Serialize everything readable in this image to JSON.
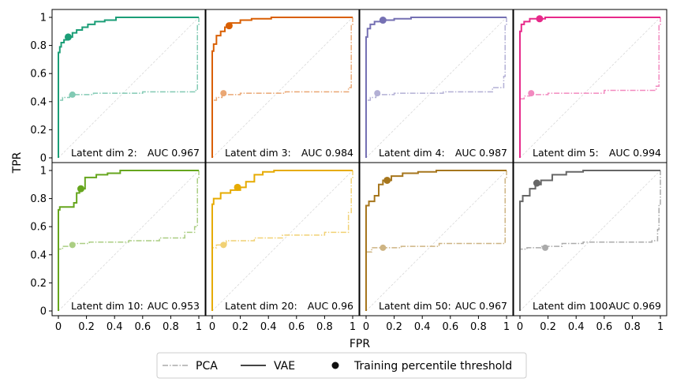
{
  "chart_data": {
    "type": "line",
    "title": "",
    "xlabel": "FPR",
    "ylabel": "TPR",
    "xlim": [
      0,
      1
    ],
    "ylim": [
      0,
      1
    ],
    "x_ticks": [
      "0",
      "0.2",
      "0.4",
      "0.6",
      "0.8",
      "1"
    ],
    "y_ticks": [
      "0",
      "0.2",
      "0.4",
      "0.6",
      "0.8",
      "1"
    ],
    "legend": {
      "placement": "bottom-center",
      "entries": [
        {
          "label": "PCA",
          "style": "dash-dot",
          "color": "#aaaaaa"
        },
        {
          "label": "VAE",
          "style": "solid",
          "color": "#444444"
        },
        {
          "label": "Training percentile threshold",
          "style": "marker",
          "color": "#111111"
        }
      ]
    },
    "panels": [
      {
        "label": "Latent dim 2:",
        "auc_text": "AUC 0.967",
        "color": "#1b9e77",
        "vae": [
          [
            0,
            0
          ],
          [
            0,
            0.75
          ],
          [
            0.01,
            0.75
          ],
          [
            0.01,
            0.79
          ],
          [
            0.02,
            0.79
          ],
          [
            0.02,
            0.82
          ],
          [
            0.04,
            0.82
          ],
          [
            0.04,
            0.84
          ],
          [
            0.07,
            0.84
          ],
          [
            0.07,
            0.86
          ],
          [
            0.1,
            0.86
          ],
          [
            0.1,
            0.89
          ],
          [
            0.13,
            0.89
          ],
          [
            0.13,
            0.91
          ],
          [
            0.17,
            0.91
          ],
          [
            0.17,
            0.93
          ],
          [
            0.21,
            0.93
          ],
          [
            0.21,
            0.95
          ],
          [
            0.26,
            0.95
          ],
          [
            0.26,
            0.97
          ],
          [
            0.33,
            0.97
          ],
          [
            0.33,
            0.98
          ],
          [
            0.41,
            0.98
          ],
          [
            0.41,
            1
          ],
          [
            1,
            1
          ]
        ],
        "vae_threshold": [
          0.07,
          0.86
        ],
        "pca": [
          [
            0,
            0
          ],
          [
            0,
            0.41
          ],
          [
            0.03,
            0.41
          ],
          [
            0.03,
            0.43
          ],
          [
            0.08,
            0.43
          ],
          [
            0.08,
            0.45
          ],
          [
            0.25,
            0.45
          ],
          [
            0.25,
            0.46
          ],
          [
            0.6,
            0.46
          ],
          [
            0.6,
            0.47
          ],
          [
            0.97,
            0.47
          ],
          [
            0.97,
            0.48
          ],
          [
            0.99,
            0.48
          ],
          [
            0.99,
            0.95
          ],
          [
            1,
            0.95
          ],
          [
            1,
            1
          ]
        ],
        "pca_threshold": [
          0.1,
          0.45
        ]
      },
      {
        "label": "Latent dim 3:",
        "auc_text": "AUC 0.984",
        "color": "#d95f02",
        "vae": [
          [
            0,
            0
          ],
          [
            0,
            0.76
          ],
          [
            0.01,
            0.76
          ],
          [
            0.01,
            0.81
          ],
          [
            0.03,
            0.81
          ],
          [
            0.03,
            0.87
          ],
          [
            0.06,
            0.87
          ],
          [
            0.06,
            0.9
          ],
          [
            0.09,
            0.9
          ],
          [
            0.09,
            0.93
          ],
          [
            0.13,
            0.93
          ],
          [
            0.13,
            0.96
          ],
          [
            0.2,
            0.96
          ],
          [
            0.2,
            0.98
          ],
          [
            0.28,
            0.98
          ],
          [
            0.28,
            0.99
          ],
          [
            0.42,
            0.99
          ],
          [
            0.42,
            1
          ],
          [
            1,
            1
          ]
        ],
        "vae_threshold": [
          0.12,
          0.94
        ],
        "pca": [
          [
            0,
            0
          ],
          [
            0,
            0.41
          ],
          [
            0.03,
            0.41
          ],
          [
            0.03,
            0.43
          ],
          [
            0.07,
            0.43
          ],
          [
            0.07,
            0.45
          ],
          [
            0.2,
            0.45
          ],
          [
            0.2,
            0.46
          ],
          [
            0.52,
            0.46
          ],
          [
            0.52,
            0.47
          ],
          [
            0.97,
            0.47
          ],
          [
            0.97,
            0.5
          ],
          [
            0.99,
            0.5
          ],
          [
            0.99,
            0.95
          ],
          [
            1,
            0.95
          ],
          [
            1,
            1
          ]
        ],
        "pca_threshold": [
          0.08,
          0.46
        ]
      },
      {
        "label": "Latent dim 4:",
        "auc_text": "AUC 0.987",
        "color": "#7570b3",
        "vae": [
          [
            0,
            0
          ],
          [
            0,
            0.86
          ],
          [
            0.01,
            0.86
          ],
          [
            0.01,
            0.92
          ],
          [
            0.03,
            0.92
          ],
          [
            0.03,
            0.95
          ],
          [
            0.06,
            0.95
          ],
          [
            0.06,
            0.97
          ],
          [
            0.12,
            0.97
          ],
          [
            0.12,
            0.98
          ],
          [
            0.2,
            0.98
          ],
          [
            0.2,
            0.99
          ],
          [
            0.32,
            0.99
          ],
          [
            0.32,
            1
          ],
          [
            1,
            1
          ]
        ],
        "vae_threshold": [
          0.12,
          0.98
        ],
        "pca": [
          [
            0,
            0
          ],
          [
            0,
            0.41
          ],
          [
            0.03,
            0.41
          ],
          [
            0.03,
            0.43
          ],
          [
            0.07,
            0.43
          ],
          [
            0.07,
            0.45
          ],
          [
            0.2,
            0.45
          ],
          [
            0.2,
            0.46
          ],
          [
            0.55,
            0.46
          ],
          [
            0.55,
            0.47
          ],
          [
            0.9,
            0.47
          ],
          [
            0.9,
            0.5
          ],
          [
            0.98,
            0.5
          ],
          [
            0.98,
            0.58
          ],
          [
            0.99,
            0.58
          ],
          [
            0.99,
            0.95
          ],
          [
            1,
            0.95
          ],
          [
            1,
            1
          ]
        ],
        "pca_threshold": [
          0.08,
          0.46
        ]
      },
      {
        "label": "Latent dim 5:",
        "auc_text": "AUC 0.994",
        "color": "#e7298a",
        "vae": [
          [
            0,
            0
          ],
          [
            0,
            0.9
          ],
          [
            0.01,
            0.9
          ],
          [
            0.01,
            0.95
          ],
          [
            0.03,
            0.95
          ],
          [
            0.03,
            0.97
          ],
          [
            0.07,
            0.97
          ],
          [
            0.07,
            0.99
          ],
          [
            0.18,
            0.99
          ],
          [
            0.18,
            1
          ],
          [
            1,
            1
          ]
        ],
        "vae_threshold": [
          0.14,
          0.99
        ],
        "pca": [
          [
            0,
            0
          ],
          [
            0,
            0.42
          ],
          [
            0.03,
            0.42
          ],
          [
            0.03,
            0.44
          ],
          [
            0.07,
            0.44
          ],
          [
            0.07,
            0.45
          ],
          [
            0.2,
            0.45
          ],
          [
            0.2,
            0.46
          ],
          [
            0.6,
            0.46
          ],
          [
            0.6,
            0.48
          ],
          [
            0.97,
            0.48
          ],
          [
            0.97,
            0.51
          ],
          [
            0.99,
            0.51
          ],
          [
            0.99,
            0.95
          ],
          [
            1,
            0.95
          ],
          [
            1,
            1
          ]
        ],
        "pca_threshold": [
          0.08,
          0.46
        ]
      },
      {
        "label": "Latent dim 10:",
        "auc_text": "AUC 0.953",
        "color": "#66a61e",
        "vae": [
          [
            0,
            0
          ],
          [
            0,
            0.72
          ],
          [
            0.01,
            0.72
          ],
          [
            0.01,
            0.74
          ],
          [
            0.11,
            0.74
          ],
          [
            0.11,
            0.77
          ],
          [
            0.13,
            0.77
          ],
          [
            0.13,
            0.84
          ],
          [
            0.15,
            0.84
          ],
          [
            0.15,
            0.87
          ],
          [
            0.19,
            0.87
          ],
          [
            0.19,
            0.95
          ],
          [
            0.27,
            0.95
          ],
          [
            0.27,
            0.97
          ],
          [
            0.35,
            0.97
          ],
          [
            0.35,
            0.98
          ],
          [
            0.44,
            0.98
          ],
          [
            0.44,
            1
          ],
          [
            1,
            1
          ]
        ],
        "vae_threshold": [
          0.16,
          0.87
        ],
        "pca": [
          [
            0,
            0
          ],
          [
            0,
            0.44
          ],
          [
            0.03,
            0.44
          ],
          [
            0.03,
            0.46
          ],
          [
            0.1,
            0.46
          ],
          [
            0.1,
            0.48
          ],
          [
            0.22,
            0.48
          ],
          [
            0.22,
            0.49
          ],
          [
            0.5,
            0.49
          ],
          [
            0.5,
            0.5
          ],
          [
            0.72,
            0.5
          ],
          [
            0.72,
            0.52
          ],
          [
            0.9,
            0.52
          ],
          [
            0.9,
            0.56
          ],
          [
            0.97,
            0.56
          ],
          [
            0.97,
            0.6
          ],
          [
            0.99,
            0.6
          ],
          [
            0.99,
            0.95
          ],
          [
            1,
            0.95
          ],
          [
            1,
            1
          ]
        ],
        "pca_threshold": [
          0.1,
          0.47
        ]
      },
      {
        "label": "Latent dim 20:",
        "auc_text": "AUC 0.96",
        "color": "#e6ab02",
        "vae": [
          [
            0,
            0
          ],
          [
            0,
            0.76
          ],
          [
            0.01,
            0.76
          ],
          [
            0.01,
            0.8
          ],
          [
            0.06,
            0.8
          ],
          [
            0.06,
            0.84
          ],
          [
            0.13,
            0.84
          ],
          [
            0.13,
            0.86
          ],
          [
            0.2,
            0.86
          ],
          [
            0.2,
            0.88
          ],
          [
            0.24,
            0.88
          ],
          [
            0.24,
            0.92
          ],
          [
            0.3,
            0.92
          ],
          [
            0.3,
            0.97
          ],
          [
            0.36,
            0.97
          ],
          [
            0.36,
            0.99
          ],
          [
            0.44,
            0.99
          ],
          [
            0.44,
            1
          ],
          [
            1,
            1
          ]
        ],
        "vae_threshold": [
          0.18,
          0.88
        ],
        "pca": [
          [
            0,
            0
          ],
          [
            0,
            0.45
          ],
          [
            0.03,
            0.45
          ],
          [
            0.03,
            0.47
          ],
          [
            0.1,
            0.47
          ],
          [
            0.1,
            0.5
          ],
          [
            0.3,
            0.5
          ],
          [
            0.3,
            0.52
          ],
          [
            0.5,
            0.52
          ],
          [
            0.5,
            0.54
          ],
          [
            0.8,
            0.54
          ],
          [
            0.8,
            0.56
          ],
          [
            0.97,
            0.56
          ],
          [
            0.97,
            0.7
          ],
          [
            0.99,
            0.7
          ],
          [
            0.99,
            0.95
          ],
          [
            1,
            0.95
          ],
          [
            1,
            1
          ]
        ],
        "pca_threshold": [
          0.08,
          0.47
        ]
      },
      {
        "label": "Latent dim 50:",
        "auc_text": "AUC 0.967",
        "color": "#a6761d",
        "vae": [
          [
            0,
            0
          ],
          [
            0,
            0.75
          ],
          [
            0.02,
            0.75
          ],
          [
            0.02,
            0.78
          ],
          [
            0.06,
            0.78
          ],
          [
            0.06,
            0.82
          ],
          [
            0.09,
            0.82
          ],
          [
            0.09,
            0.9
          ],
          [
            0.12,
            0.9
          ],
          [
            0.12,
            0.93
          ],
          [
            0.18,
            0.93
          ],
          [
            0.18,
            0.96
          ],
          [
            0.26,
            0.96
          ],
          [
            0.26,
            0.98
          ],
          [
            0.37,
            0.98
          ],
          [
            0.37,
            0.99
          ],
          [
            0.5,
            0.99
          ],
          [
            0.5,
            1
          ],
          [
            1,
            1
          ]
        ],
        "vae_threshold": [
          0.15,
          0.93
        ],
        "pca": [
          [
            0,
            0
          ],
          [
            0,
            0.42
          ],
          [
            0.04,
            0.42
          ],
          [
            0.04,
            0.45
          ],
          [
            0.25,
            0.45
          ],
          [
            0.25,
            0.46
          ],
          [
            0.52,
            0.46
          ],
          [
            0.52,
            0.48
          ],
          [
            0.99,
            0.48
          ],
          [
            0.99,
            0.95
          ],
          [
            1,
            0.95
          ],
          [
            1,
            1
          ]
        ],
        "pca_threshold": [
          0.12,
          0.45
        ]
      },
      {
        "label": "Latent dim 100:",
        "auc_text": "AUC 0.969",
        "color": "#666666",
        "vae": [
          [
            0,
            0
          ],
          [
            0,
            0.78
          ],
          [
            0.02,
            0.78
          ],
          [
            0.02,
            0.82
          ],
          [
            0.07,
            0.82
          ],
          [
            0.07,
            0.87
          ],
          [
            0.11,
            0.87
          ],
          [
            0.11,
            0.9
          ],
          [
            0.15,
            0.9
          ],
          [
            0.15,
            0.93
          ],
          [
            0.23,
            0.93
          ],
          [
            0.23,
            0.97
          ],
          [
            0.33,
            0.97
          ],
          [
            0.33,
            0.99
          ],
          [
            0.45,
            0.99
          ],
          [
            0.45,
            1
          ],
          [
            1,
            1
          ]
        ],
        "vae_threshold": [
          0.12,
          0.91
        ],
        "pca": [
          [
            0,
            0
          ],
          [
            0,
            0.44
          ],
          [
            0.05,
            0.44
          ],
          [
            0.05,
            0.45
          ],
          [
            0.15,
            0.45
          ],
          [
            0.15,
            0.46
          ],
          [
            0.3,
            0.46
          ],
          [
            0.3,
            0.48
          ],
          [
            0.45,
            0.48
          ],
          [
            0.45,
            0.49
          ],
          [
            0.94,
            0.49
          ],
          [
            0.94,
            0.5
          ],
          [
            0.98,
            0.5
          ],
          [
            0.98,
            0.58
          ],
          [
            0.99,
            0.58
          ],
          [
            0.99,
            0.75
          ],
          [
            1,
            0.75
          ],
          [
            1,
            1
          ]
        ],
        "pca_threshold": [
          0.18,
          0.45
        ]
      }
    ]
  }
}
